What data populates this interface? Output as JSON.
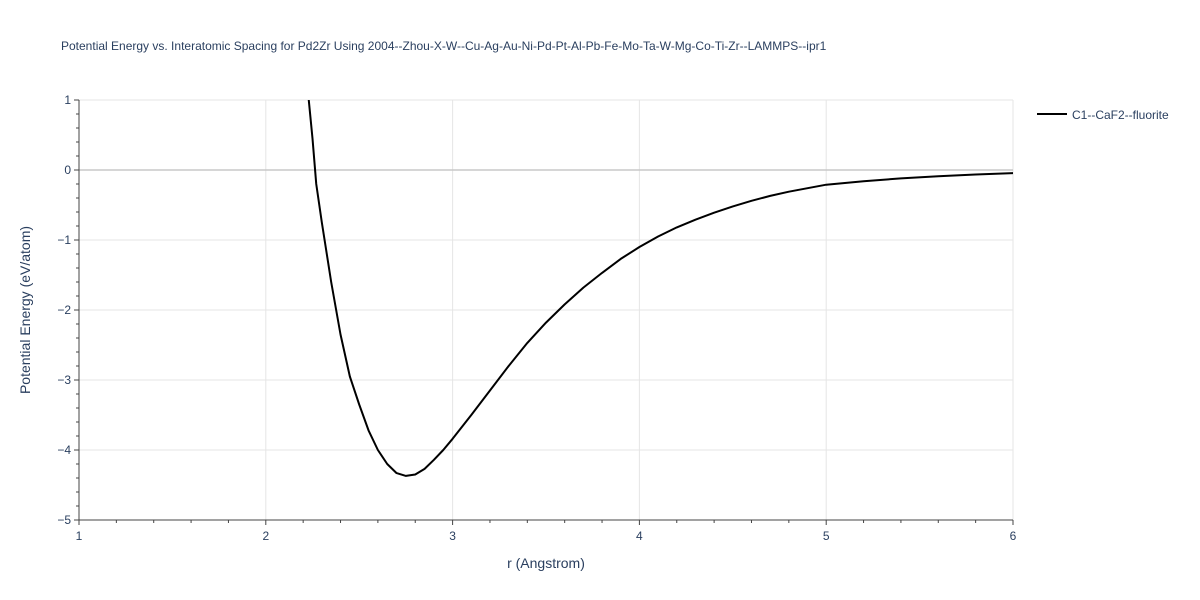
{
  "chart_data": {
    "type": "line",
    "title": "Potential Energy vs. Interatomic Spacing for Pd2Zr Using 2004--Zhou-X-W--Cu-Ag-Au-Ni-Pd-Pt-Al-Pb-Fe-Mo-Ta-W-Mg-Co-Ti-Zr--LAMMPS--ipr1",
    "xlabel": "r (Angstrom)",
    "ylabel": "Potential Energy (eV/atom)",
    "xlim": [
      1,
      6
    ],
    "ylim": [
      -5,
      1
    ],
    "x_ticks": [
      1,
      2,
      3,
      4,
      5,
      6
    ],
    "y_ticks": [
      1,
      0,
      -1,
      -2,
      -3,
      -4,
      -5
    ],
    "x_tick_labels": [
      "1",
      "2",
      "3",
      "4",
      "5",
      "6"
    ],
    "y_tick_labels": [
      "1",
      "0",
      "−1",
      "−2",
      "−3",
      "−4",
      "−5"
    ],
    "grid": true,
    "legend_position": "top-right",
    "series": [
      {
        "name": "C1--CaF2--fluorite",
        "color": "#000000",
        "points": [
          [
            2.23,
            1.0
          ],
          [
            2.25,
            0.45
          ],
          [
            2.27,
            -0.2
          ],
          [
            2.3,
            -0.75
          ],
          [
            2.35,
            -1.6
          ],
          [
            2.4,
            -2.35
          ],
          [
            2.45,
            -2.95
          ],
          [
            2.5,
            -3.35
          ],
          [
            2.55,
            -3.72
          ],
          [
            2.6,
            -4.0
          ],
          [
            2.65,
            -4.2
          ],
          [
            2.7,
            -4.33
          ],
          [
            2.75,
            -4.37
          ],
          [
            2.8,
            -4.35
          ],
          [
            2.85,
            -4.27
          ],
          [
            2.9,
            -4.14
          ],
          [
            2.95,
            -4.0
          ],
          [
            3.0,
            -3.84
          ],
          [
            3.1,
            -3.5
          ],
          [
            3.2,
            -3.15
          ],
          [
            3.3,
            -2.8
          ],
          [
            3.4,
            -2.47
          ],
          [
            3.5,
            -2.18
          ],
          [
            3.6,
            -1.92
          ],
          [
            3.7,
            -1.68
          ],
          [
            3.8,
            -1.47
          ],
          [
            3.9,
            -1.27
          ],
          [
            4.0,
            -1.1
          ],
          [
            4.1,
            -0.95
          ],
          [
            4.2,
            -0.82
          ],
          [
            4.3,
            -0.71
          ],
          [
            4.4,
            -0.61
          ],
          [
            4.5,
            -0.52
          ],
          [
            4.6,
            -0.44
          ],
          [
            4.7,
            -0.37
          ],
          [
            4.8,
            -0.31
          ],
          [
            4.9,
            -0.26
          ],
          [
            5.0,
            -0.21
          ],
          [
            5.2,
            -0.16
          ],
          [
            5.4,
            -0.12
          ],
          [
            5.6,
            -0.09
          ],
          [
            5.8,
            -0.065
          ],
          [
            6.0,
            -0.045
          ]
        ]
      }
    ]
  }
}
